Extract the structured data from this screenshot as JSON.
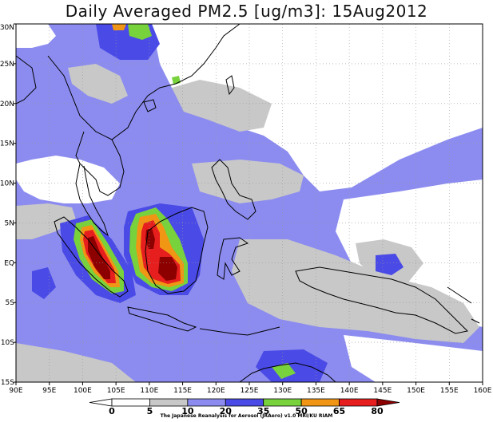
{
  "title": "Daily Averaged PM2.5 [ug/m3]: 15Aug2012",
  "credit": "The Japanese Reanalysis for Aerosol (JRAero) v1.0 MRI/KU RIAM",
  "map": {
    "lon_range": [
      90,
      160
    ],
    "lat_range": [
      -15,
      30
    ],
    "lon_ticks": [
      "90E",
      "95E",
      "100E",
      "105E",
      "110E",
      "115E",
      "120E",
      "125E",
      "130E",
      "135E",
      "140E",
      "145E",
      "150E",
      "155E",
      "160E"
    ],
    "lat_ticks": [
      "30N",
      "25N",
      "20N",
      "15N",
      "10N",
      "5N",
      "EQ",
      "5S",
      "10S",
      "15S"
    ],
    "gridlines": true,
    "grid_style": "dotted"
  },
  "colorbar": {
    "unit": "ug/m3",
    "thresholds": [
      "0",
      "5",
      "10",
      "20",
      "35",
      "50",
      "65",
      "80"
    ],
    "colors": [
      "#ffffff",
      "#ffffff",
      "#c8c8c8",
      "#8c8cf0",
      "#4a4ae6",
      "#78d23c",
      "#f09614",
      "#e61e1e",
      "#8c0000"
    ]
  },
  "palette": {
    "white": "#ffffff",
    "gray": "#c8c8c8",
    "light_blue": "#8c8cf0",
    "blue": "#4a4ae6",
    "green": "#78d23c",
    "orange": "#f09614",
    "red": "#e61e1e",
    "dark_red": "#8c0000"
  }
}
